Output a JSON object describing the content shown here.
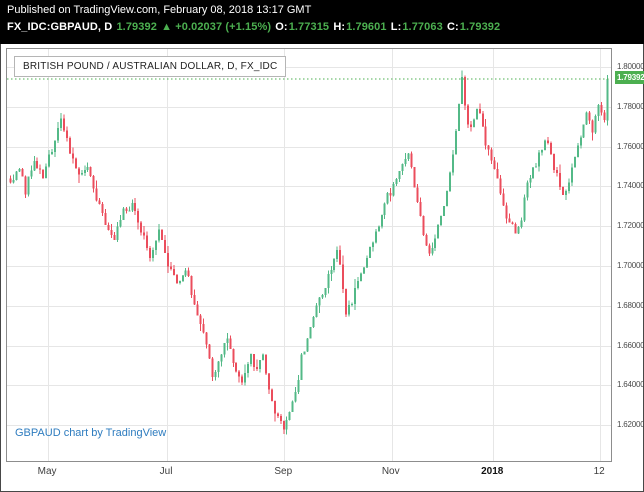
{
  "header": {
    "published": "Published on TradingView.com, February 08, 2018 13:17 GMT",
    "quote_parts": [
      {
        "text": "FX_IDC:GBPAUD, D ",
        "color": "#ffffff"
      },
      {
        "text": "1.79392 ",
        "color": "#4caf50"
      },
      {
        "text": "▲ +0.02037 (+1.15%) ",
        "color": "#4caf50"
      },
      {
        "text": "O:",
        "color": "#ffffff"
      },
      {
        "text": "1.77315 ",
        "color": "#4caf50"
      },
      {
        "text": "H:",
        "color": "#ffffff"
      },
      {
        "text": "1.79601 ",
        "color": "#4caf50"
      },
      {
        "text": "L:",
        "color": "#ffffff"
      },
      {
        "text": "1.77063 ",
        "color": "#4caf50"
      },
      {
        "text": "C:",
        "color": "#ffffff"
      },
      {
        "text": "1.79392",
        "color": "#4caf50"
      }
    ]
  },
  "chart": {
    "legend": "BRITISH POUND / AUSTRALIAN DOLLAR, D, FX_IDC",
    "watermark": "GBPAUD chart by TradingView"
  },
  "chart_data": {
    "type": "candlestick",
    "symbol": "FX_IDC:GBPAUD",
    "timeframe": "D",
    "title": "BRITISH POUND / AUSTRALIAN DOLLAR, D, FX_IDC",
    "last_price": 1.79392,
    "last_price_label": "1.79392",
    "change": "+0.02037",
    "change_pct": "+1.15%",
    "ohlc_display": {
      "open": 1.77315,
      "high": 1.79601,
      "low": 1.77063,
      "close": 1.79392
    },
    "y_axis": {
      "min": 1.602,
      "max": 1.809,
      "decimals": 5,
      "tick_step": 0.02,
      "ticks": [
        1.8,
        1.78,
        1.76,
        1.74,
        1.72,
        1.7,
        1.68,
        1.66,
        1.64,
        1.62
      ]
    },
    "x_axis": {
      "labels": [
        {
          "text": "May",
          "f": 0.068,
          "bold": false
        },
        {
          "text": "Jul",
          "f": 0.265,
          "bold": false
        },
        {
          "text": "Sep",
          "f": 0.459,
          "bold": false
        },
        {
          "text": "Nov",
          "f": 0.637,
          "bold": false
        },
        {
          "text": "2018",
          "f": 0.805,
          "bold": true
        },
        {
          "text": "12",
          "f": 0.982,
          "bold": false
        }
      ]
    },
    "num_candles": 202,
    "close_anchors": [
      [
        0,
        1.742
      ],
      [
        3,
        1.748
      ],
      [
        5,
        1.738
      ],
      [
        8,
        1.752
      ],
      [
        11,
        1.746
      ],
      [
        14,
        1.758
      ],
      [
        17,
        1.772
      ],
      [
        20,
        1.757
      ],
      [
        23,
        1.745
      ],
      [
        26,
        1.751
      ],
      [
        29,
        1.735
      ],
      [
        32,
        1.722
      ],
      [
        35,
        1.712
      ],
      [
        38,
        1.728
      ],
      [
        41,
        1.731
      ],
      [
        44,
        1.717
      ],
      [
        47,
        1.706
      ],
      [
        50,
        1.716
      ],
      [
        53,
        1.701
      ],
      [
        56,
        1.692
      ],
      [
        59,
        1.698
      ],
      [
        62,
        1.682
      ],
      [
        65,
        1.668
      ],
      [
        68,
        1.643
      ],
      [
        70,
        1.653
      ],
      [
        73,
        1.664
      ],
      [
        76,
        1.647
      ],
      [
        78,
        1.639
      ],
      [
        81,
        1.655
      ],
      [
        83,
        1.647
      ],
      [
        85,
        1.657
      ],
      [
        88,
        1.631
      ],
      [
        90,
        1.624
      ],
      [
        92,
        1.617
      ],
      [
        94,
        1.625
      ],
      [
        96,
        1.635
      ],
      [
        98,
        1.655
      ],
      [
        101,
        1.667
      ],
      [
        103,
        1.68
      ],
      [
        106,
        1.691
      ],
      [
        108,
        1.7
      ],
      [
        110,
        1.709
      ],
      [
        113,
        1.678
      ],
      [
        115,
        1.683
      ],
      [
        118,
        1.698
      ],
      [
        120,
        1.703
      ],
      [
        122,
        1.714
      ],
      [
        124,
        1.721
      ],
      [
        126,
        1.733
      ],
      [
        129,
        1.74
      ],
      [
        131,
        1.747
      ],
      [
        134,
        1.756
      ],
      [
        137,
        1.731
      ],
      [
        139,
        1.717
      ],
      [
        141,
        1.705
      ],
      [
        144,
        1.721
      ],
      [
        146,
        1.73
      ],
      [
        149,
        1.757
      ],
      [
        151,
        1.779
      ],
      [
        152,
        1.797
      ],
      [
        154,
        1.769
      ],
      [
        156,
        1.775
      ],
      [
        158,
        1.778
      ],
      [
        160,
        1.762
      ],
      [
        162,
        1.751
      ],
      [
        165,
        1.737
      ],
      [
        167,
        1.726
      ],
      [
        170,
        1.718
      ],
      [
        172,
        1.725
      ],
      [
        174,
        1.74
      ],
      [
        177,
        1.752
      ],
      [
        180,
        1.763
      ],
      [
        182,
        1.756
      ],
      [
        184,
        1.745
      ],
      [
        186,
        1.735
      ],
      [
        188,
        1.741
      ],
      [
        190,
        1.755
      ],
      [
        192,
        1.765
      ],
      [
        194,
        1.775
      ],
      [
        196,
        1.768
      ],
      [
        198,
        1.78
      ],
      [
        199,
        1.776
      ],
      [
        200,
        1.7735
      ],
      [
        201,
        1.79392
      ]
    ],
    "noise_amp": 0.0025,
    "wick_amp": 0.005,
    "seed": 9,
    "colors": {
      "up": "#53b987",
      "down": "#eb4d5c",
      "grid": "#e6e6e6",
      "axis_text": "#4a4a4a",
      "price_line": "#4caf50",
      "badge_bg": "#4caf50",
      "badge_text": "#ffffff",
      "header_bg": "#000000",
      "header_text": "#ffffff",
      "header_green": "#4caf50",
      "watermark_blue": "#2e7cbf"
    }
  }
}
